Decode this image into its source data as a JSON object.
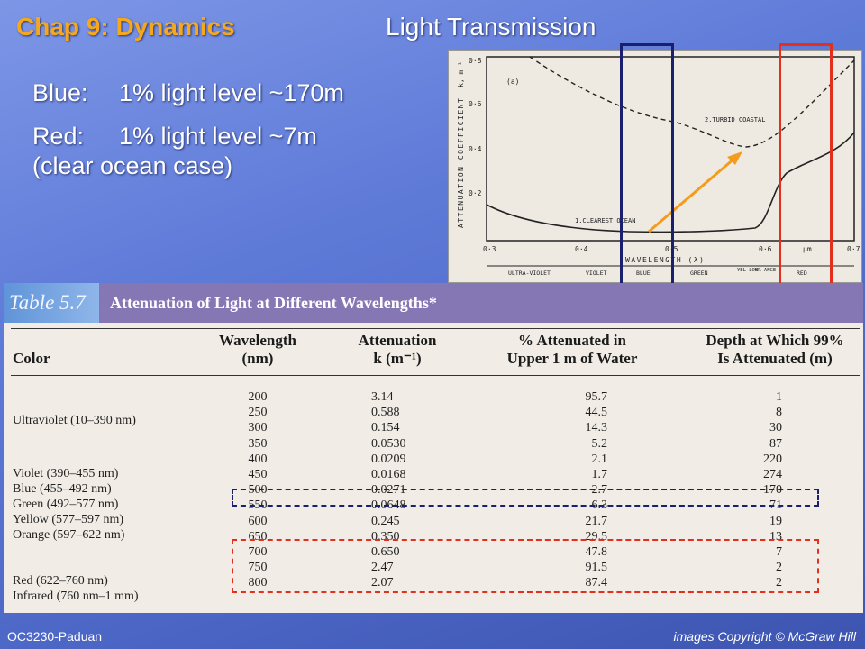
{
  "slide": {
    "title": "Chap 9: Dynamics",
    "subtitle": "Light Transmission",
    "bullets": [
      {
        "label": "Blue:",
        "text": "1% light level ~170m"
      },
      {
        "label": "Red:",
        "text": "1% light level ~7m"
      }
    ],
    "note": "(clear ocean case)",
    "footer_left": "OC3230-Paduan",
    "footer_right": "images Copyright © McGraw Hill"
  },
  "graph": {
    "panel_label": "(a)",
    "yaxis_label": "ATTENUATION COEFFICIENT",
    "yaxis_unit": "k, m⁻¹",
    "xaxis_label": "WAVELENGTH (λ)",
    "x_unit": "μm",
    "y_ticks": [
      "0·8",
      "0·6",
      "0·4",
      "0·2"
    ],
    "x_ticks": [
      "0·3",
      "0·4",
      "0·5",
      "0·6",
      "0·7"
    ],
    "curve_labels": [
      "2.TURBID COASTAL",
      "1.CLEAREST OCEAN"
    ],
    "bands": [
      "ULTRA-VIOLET",
      "VIOLET",
      "BLUE",
      "GREEN",
      "YEL-LOW",
      "OR-ANGE",
      "RED"
    ],
    "colors": {
      "blue_box": "#1a1f6e",
      "red_box": "#e3301e",
      "arrow": "#f39c1e"
    }
  },
  "table": {
    "badge": "Table 5.7",
    "caption": "Attenuation of Light at Different Wavelengths*",
    "headers": {
      "color": "Color",
      "wavelength": [
        "Wavelength",
        "(nm)"
      ],
      "attenuation": [
        "Attenuation",
        "k (m⁻¹)"
      ],
      "percent": [
        "% Attenuated in",
        "Upper 1 m of Water"
      ],
      "depth": [
        "Depth at Which 99%",
        "Is Attenuated (m)"
      ]
    },
    "color_labels": [
      "Ultraviolet (10–390 nm)",
      "Violet (390–455 nm)",
      "Blue (455–492 nm)",
      "Green (492–577 nm)",
      "Yellow (577–597 nm)",
      "Orange (597–622 nm)",
      "Red (622–760 nm)",
      "Infrared (760 nm–1 mm)"
    ],
    "rows": [
      {
        "wl": "200",
        "k": "3.14",
        "pct": "95.7",
        "depth": "1"
      },
      {
        "wl": "250",
        "k": "0.588",
        "pct": "44.5",
        "depth": "8"
      },
      {
        "wl": "300",
        "k": "0.154",
        "pct": "14.3",
        "depth": "30"
      },
      {
        "wl": "350",
        "k": "0.0530",
        "pct": "5.2",
        "depth": "87"
      },
      {
        "wl": "400",
        "k": "0.0209",
        "pct": "2.1",
        "depth": "220"
      },
      {
        "wl": "450",
        "k": "0.0168",
        "pct": "1.7",
        "depth": "274"
      },
      {
        "wl": "500",
        "k": "0.0271",
        "pct": "2.7",
        "depth": "170"
      },
      {
        "wl": "550",
        "k": "0.0648",
        "pct": "6.3",
        "depth": "71"
      },
      {
        "wl": "600",
        "k": "0.245",
        "pct": "21.7",
        "depth": "19"
      },
      {
        "wl": "650",
        "k": "0.350",
        "pct": "29.5",
        "depth": "13"
      },
      {
        "wl": "700",
        "k": "0.650",
        "pct": "47.8",
        "depth": "7"
      },
      {
        "wl": "750",
        "k": "2.47",
        "pct": "91.5",
        "depth": "2"
      },
      {
        "wl": "800",
        "k": "2.07",
        "pct": "87.4",
        "depth": "2"
      }
    ]
  }
}
